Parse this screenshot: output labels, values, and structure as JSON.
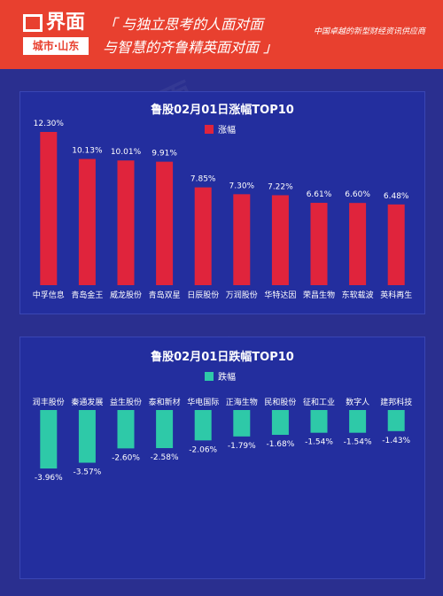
{
  "header": {
    "logo_brand": "界面",
    "logo_sub": "城市·山东",
    "slogan_line1": "「 与独立思考的人面对面",
    "slogan_line2": "与智慧的齐鲁精英面对面 」",
    "tagline": "中国卓越的新型财经资讯供应商"
  },
  "colors": {
    "header_bg": "#e8402f",
    "bg": "#2a2f8f",
    "rise": "#e0243c",
    "fall": "#2ec9a8"
  },
  "chart_data": [
    {
      "type": "bar",
      "title": "鲁股02月01日涨幅TOP10",
      "legend": "涨幅",
      "categories": [
        "中孚信息",
        "青岛金王",
        "威龙股份",
        "青岛双星",
        "日辰股份",
        "万润股份",
        "华特达因",
        "荣昌生物",
        "东软载波",
        "英科再生"
      ],
      "values": [
        12.3,
        10.13,
        10.01,
        9.91,
        7.85,
        7.3,
        7.22,
        6.61,
        6.6,
        6.48
      ],
      "labels": [
        "12.30%",
        "10.13%",
        "10.01%",
        "9.91%",
        "7.85%",
        "7.30%",
        "7.22%",
        "6.61%",
        "6.60%",
        "6.48%"
      ],
      "ylim": [
        0,
        12.3
      ]
    },
    {
      "type": "bar",
      "title": "鲁股02月01日跌幅TOP10",
      "legend": "跌幅",
      "categories": [
        "润丰股份",
        "秦通发展",
        "益生股份",
        "泰和新材",
        "华电国际",
        "正海生物",
        "民和股份",
        "征和工业",
        "数字人",
        "建邦科技"
      ],
      "values": [
        -3.96,
        -3.57,
        -2.6,
        -2.58,
        -2.06,
        -1.79,
        -1.68,
        -1.54,
        -1.54,
        -1.43
      ],
      "labels": [
        "-3.96%",
        "-3.57%",
        "-2.60%",
        "-2.58%",
        "-2.06%",
        "-1.79%",
        "-1.68%",
        "-1.54%",
        "-1.54%",
        "-1.43%"
      ],
      "ylim": [
        -3.96,
        0
      ]
    }
  ]
}
